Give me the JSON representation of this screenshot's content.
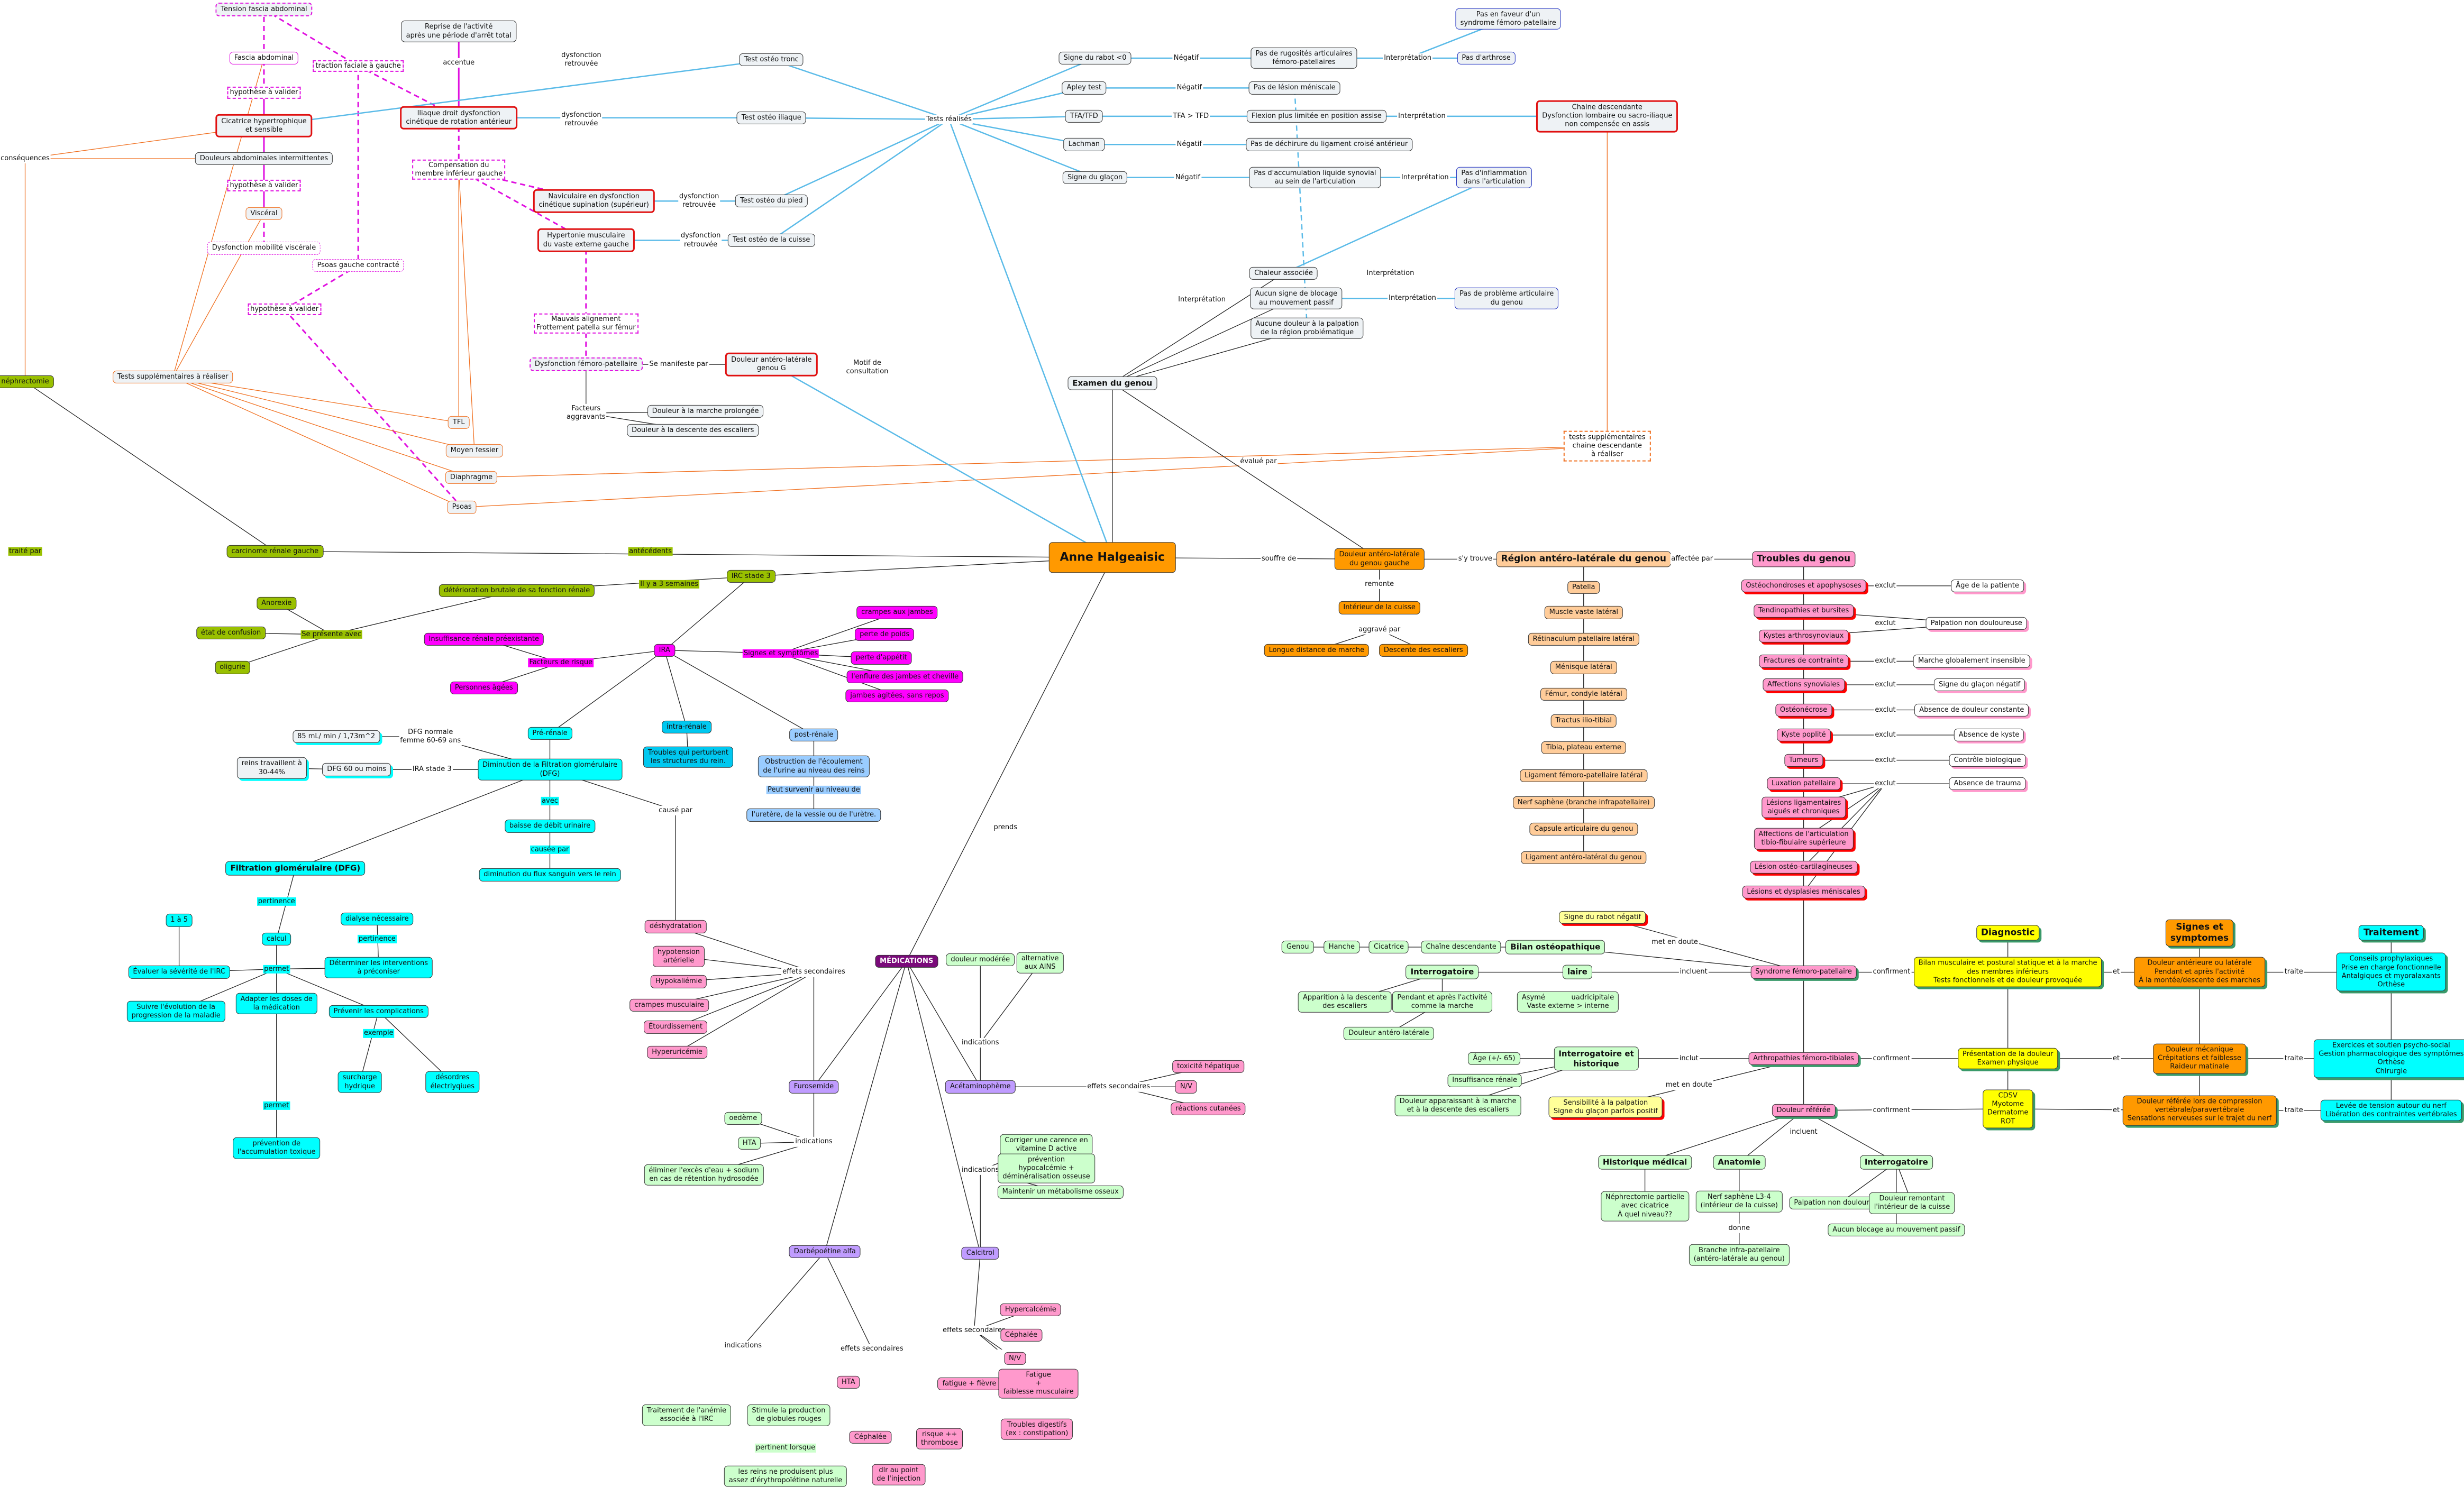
{
  "colors": {
    "blue_link": "#5bbbe8",
    "orange_link": "#f07020",
    "magenta_link": "#e010e0",
    "central": "#ff9900",
    "highlight_border": "#e01010"
  },
  "nodes": {
    "tension_fascia": "Tension fascia abdominal",
    "fascia": "Fascia abdominal",
    "hyp1": "hypothèse à valider",
    "cicatrice": "Cicatrice hypertrophique\net sensible",
    "douleurs_abdo": "Douleurs abdominales intermittentes",
    "hyp2": "hypothèse à valider",
    "visceral": "Viscéral",
    "dysf_visc": "Dysfonction mobilité viscérale",
    "traction": "traction faciale à gauche",
    "psoas_g": "Psoas gauche contracté",
    "hyp3": "hypothèse à valider",
    "consequences": "conséquences",
    "nephrectomie": "néphrectomie",
    "tests_supp": "Tests supplémentaires à réaliser",
    "tfl": "TFL",
    "moyen_fessier": "Moyen fessier",
    "diaphragme": "Diaphragme",
    "psoas": "Psoas",
    "reprise": "Reprise de l'activité\naprès une période d'arrêt total",
    "accentue": "accentue",
    "iliaque": "Iliaque droit dysfonction\ncinétique de rotation antérieur",
    "compensation": "Compensation du\nmembre inférieur gauche",
    "dr1": "dysfonction\nretrouvée",
    "dr2": "dysfonction\nretrouvée",
    "dr3": "dysfonction\nretrouvée",
    "dr4": "dysfonction\nretrouvée",
    "test_tronc": "Test ostéo tronc",
    "test_iliaque": "Test ostéo iliaque",
    "test_pied": "Test ostéo du pied",
    "test_cuisse": "Test ostéo de la cuisse",
    "tests_realises": "Tests réalisés",
    "naviculaire": "Naviculaire en dysfonction\ncinétique supination (supérieur)",
    "hypertonie": "Hypertonie musculaire\ndu vaste externe gauche",
    "mauvais": "Mauvais alignement\nFrottement patella sur fémur",
    "dysf_fp": "Dysfonction fémoro-patellaire",
    "se_manifeste": "Se manifeste par",
    "douleur_g": "Douleur antéro-latérale\ngenou G",
    "motif": "Motif de\nconsultation",
    "facteurs_aggr": "Facteurs\naggravants",
    "d_marche": "Douleur à la marche prolongée",
    "d_descente": "Douleur à la descente des escaliers",
    "signe_rabot": "Signe du rabot <0",
    "neg1": "Négatif",
    "rugosites": "Pas de rugosités articulaires\nfémoro-patellaires",
    "int1": "Interprétation",
    "pas_faveur": "Pas en faveur d'un\nsyndrome fémoro-patellaire",
    "pas_arthrose": "Pas d'arthrose",
    "apley": "Apley test",
    "neg2": "Négatif",
    "pas_lesion": "Pas de lésion méniscale",
    "tfa": "TFA/TFD",
    "tfa_gt": "TFA > TFD",
    "flexion": "Flexion plus limitée en position assise",
    "int2": "Interprétation",
    "chaine_desc": "Chaine descendante\nDysfonction lombaire ou sacro-iliaque\nnon compensée en assis",
    "lachman": "Lachman",
    "neg3": "Négatif",
    "pas_dechirure": "Pas de déchirure du ligament croisé antérieur",
    "glacon": "Signe du glaçon",
    "neg4": "Négatif",
    "accumulation": "Pas d'accumulation liquide synovial\nau sein de l'articulation",
    "int3": "Interprétation",
    "pas_inflammation": "Pas d'inflammation\ndans l'articulation",
    "int_dash": "Interprétation",
    "chaleur": "Chaleur associée",
    "int4": "Interprétation",
    "aucun_blocage": "Aucun signe de blocage\nau mouvement passif",
    "int5": "Interprétation",
    "pas_probleme": "Pas de problème articulaire\ndu genou",
    "aucune_douleur": "Aucune douleur à la palpation\nde la région problématique",
    "examen_genou": "Examen du genou",
    "tests_supp_chaine": "tests supplémentaires\nchaine descendante\nà réaliser",
    "evalue_par": "évalué par",
    "anne": "Anne Halgeaisic",
    "carcinome": "carcinome rénale gauche",
    "traite_par": "traité par",
    "antecedents": "antécédents",
    "irc": "IRC stade 3",
    "il_y_a": "Il y a 3 semaines",
    "deterioration": "détérioration brutale de sa fonction rénale",
    "anorexie": "Anorexie",
    "se_presente": "Se présente avec",
    "confusion": "état de confusion",
    "oligurie": "oligurie",
    "insuff_preex": "Insuffisance rénale préexistante",
    "facteurs_risque": "Facteurs de risque",
    "personnes_agees": "Personnes âgées",
    "ira": "IRA",
    "signes_sympt": "Signes et symptômes",
    "crampes": "crampes aux jambes",
    "perte_poids": "perte de poids",
    "perte_appetit": "perte d'appétit",
    "enflure": "l'enflure des jambes et cheville",
    "jambes_agitees": "jambes agitées, sans repos",
    "pre_renale": "Pré-rénale",
    "intra_renale": "intra-rénale",
    "post_renale": "post-rénale",
    "ml85": "85 mL/ min / 1,73m^2",
    "dfg_normale": "DFG normale\nfemme 60-69 ans",
    "dfg60": "DFG 60 ou moins",
    "ira3": "IRA stade 3",
    "reins_trav": "reins travaillent à\n30-44%",
    "dim_dfg": "Diminution de la Filtration glomérulaire\n(DFG)",
    "troubles_struct": "Troubles qui perturbent\nles structures du rein.",
    "obstruction": "Obstruction de l'écoulement\nde l'urine au niveau des reins",
    "peut_survenir": "Peut survenir au niveau de",
    "uretere": "l'uretère, de la vessie ou de l'urètre.",
    "cause_par": "causé par",
    "avec": "avec",
    "baisse_debit": "baisse de débit urinaire",
    "causee_par": "causée par",
    "dim_flux": "diminution du flux sanguin vers le rein",
    "filtration": "Filtration glomérulaire (DFG)",
    "pertinence1": "pertinence",
    "calcul": "calcul",
    "un_a_cinq": "1 à 5",
    "evaluer": "Évaluer la sévérité de l'IRC",
    "permet1": "permet",
    "dialyse": "dialyse nécessaire",
    "pertinence2": "pertinence",
    "determiner": "Déterminer les interventions\nà préconiser",
    "suivre": "Suivre l'évolution de la\nprogression de la maladie",
    "adapter": "Adapter les doses de\nla médication",
    "prevenir": "Prévenir les complications",
    "exemple": "exemple",
    "surcharge": "surcharge\nhydrique",
    "desordres": "désordres\nélectrlyqiues",
    "permet2": "permet",
    "prevention": "prévention de\nl'accumulation toxique",
    "douleur_gg": "Douleur antéro-latérale\ndu genou gauche",
    "souffre_de": "souffre de",
    "sy_trouve": "s'y trouve",
    "region": "Région antéro-latérale du genou",
    "affectee_par": "affectée par",
    "troubles_genou": "Troubles du genou",
    "remonte": "remonte",
    "interieur_cuisse": "Intérieur de la cuisse",
    "aggrave_par": "aggravé par",
    "longue_distance": "Longue distance de marche",
    "descente": "Descente des escaliers",
    "patella": "Patella",
    "vaste": "Muscle vaste latéral",
    "retinaculum": "Rétinaculum patellaire latéral",
    "menisque": "Ménisque latéral",
    "femur": "Fémur, condyle latéral",
    "tractus": "Tractus ilio-tibial",
    "tibia": "Tibia, plateau externe",
    "lig_fp": "Ligament fémoro-patellaire latéral",
    "nerf_saphene": "Nerf saphène (branche infrapatellaire)",
    "capsule": "Capsule articulaire du genou",
    "lig_al": "Ligament antéro-latéral du genou",
    "t1": "Ostéochondroses et apophysoses",
    "t2": "Tendinopathies et bursites",
    "t3": "Kystes arthrosynoviaux",
    "t4": "Fractures de contrainte",
    "t5": "Affections synoviales",
    "t6": "Ostéonécrose",
    "t7": "Kyste poplité",
    "t8": "Tumeurs",
    "t9": "Luxation patellaire",
    "t10": "Lésions ligamentaires\naiguës et chroniques",
    "t11": "Affections de l'articulation\ntibio-fibulaire supérieure",
    "t12": "Lésion ostéo-cartilagineuses",
    "t13": "Lésions et dysplasies méniscales",
    "ex1": "exclut",
    "ex2": "exclut",
    "ex3": "exclut",
    "ex4": "exclut",
    "ex5": "exclut",
    "ex6": "exclut",
    "ex7": "exclut",
    "ex8": "exclut",
    "r1": "Âge de la patiente",
    "r2": "Palpation non douloureuse",
    "r3": "Marche globalement insensible",
    "r4": "Signe du glaçon négatif",
    "r5": "Absence de douleur constante",
    "r6": "Absence de kyste",
    "r7": "Contrôle biologique",
    "r8": "Absence de trauma",
    "rabot_neg": "Signe du rabot négatif",
    "met_doute1": "met en doute",
    "bilan_osteo": "Bilan ostéopathique",
    "chaine_d2": "Chaîne descendante",
    "cicatrice2": "Cicatrice",
    "hanche": "Hanche",
    "genou": "Genou",
    "interrog1": "Interrogatoire",
    "laire": "laire",
    "incluent1": "incluent",
    "sfp": "Syndrome fémoro-patellaire",
    "apparition": "Apparition à la descente\ndes escaliers",
    "pendant": "Pendant et après l'activité\ncomme la marche",
    "asym": "Asymé            uadricipitale\nVaste externe > interne",
    "d_antlat": "Douleur antéro-latérale",
    "age65": "Âge (+/- 65)",
    "interrog_hist": "Interrogatoire et\nhistorique",
    "inclut": "inclut",
    "arthropathies": "Arthropathies fémoro-tibiales",
    "insuff_renale": "Insuffisance rénale",
    "d_apparaissant": "Douleur apparaissant à la marche\net à la descente des escaliers",
    "sensibilite": "Sensibilité à la palpation\nSigne du glaçon parfois positif",
    "met_doute2": "met en doute",
    "douleur_ref": "Douleur référée",
    "incluent2": "incluent",
    "hist_med": "Historique médical",
    "anatomie": "Anatomie",
    "interrog2": "Interrogatoire",
    "nephr_part": "Néphrectomie partielle\navec cicatrice\nÀ quel niveau??",
    "nerf_l34": "Nerf saphène L3-4\n(intérieur de la cuisse)",
    "donne": "donne",
    "branche": "Branche infra-patellaire\n(antéro-latérale au genou)",
    "palp_nd": "Palpation non douloureuse",
    "d_remontant": "Douleur remontant\nl'intérieur de la cuisse",
    "aucun_bloc2": "Aucun blocage au mouvement passif",
    "diagnostic": "Diagnostic",
    "signes_s": "Signes et\nsymptomes",
    "traitement": "Traitement",
    "conf1": "confirment",
    "conf2": "confirment",
    "conf3": "confirment",
    "et1": "et",
    "et2": "et",
    "et3": "et",
    "tr1": "traite",
    "tr2": "traite",
    "tr3": "traite",
    "bilan_musc": "Bilan musculaire et postural statique et à la marche\ndes membres inférieurs\nTests fonctionnels et de douleur provoquée",
    "d_anterieure": "Douleur antérieure ou latérale\nPendant et après l'activité\nÀ la montée/descente des marches",
    "conseils": "Conseils prophylaxiques\nPrise en charge fonctionnelle\nAntalgiques et myoralaxants\nOrthèse",
    "presentation": "Présentation de la douleur\nExamen physique",
    "d_mecanique": "Douleur mécanique\nCrépitations et faiblesse\nRaideur matinale",
    "exercices": "Exercices et soutien psycho-social\nGestion pharmacologique des symptômes\nOrthèse\nChirurgie",
    "cdsv": "CDSV\nMyotome\nDermatome\nROT",
    "d_ref_comp": "Douleur référée lors de compression\nvertébrale/paravertébrale\nSensations nerveuses sur le trajet du nerf",
    "levee": "Levée de tension autour du nerf\nLibération des contraintes vertébrales",
    "medications": "MÉDICATIONS",
    "prends": "prends",
    "es1": "effets secondaires",
    "deshydratation": "déshydratation",
    "hypotension": "hypotension\nartérielle",
    "hypokaliemie": "Hypokaliémie",
    "crampes_musc": "crampes musculaire",
    "etourdissement": "Étourdissement",
    "hyperuricemie": "Hyperuricémie",
    "furosemide": "Furosemide",
    "ind1": "indications",
    "oedeme": "oedème",
    "hta1": "HTA",
    "eliminer": "éliminer l'excès d'eau + sodium\nen cas de rétention hydrosodée",
    "douleur_mod": "douleur modérée",
    "alt_ains": "alternative\naux AINS",
    "ind2": "indications",
    "acetaminophene": "Acétaminophème",
    "es2": "effets secondaires",
    "tox_hep": "toxicité hépatique",
    "nv1": "N/V",
    "reactions": "réactions cutanées",
    "darbe": "Darbépoétine alfa",
    "ind3": "indications",
    "es3": "effets secondaires",
    "trait_anemie": "Traitement de l'anémie\nassociée à l'IRC",
    "stimule": "Stimule la production\nde globules rouges",
    "pertinent_lorsque": "pertinent lorsque",
    "reins_epo": "les reins ne produisent plus\nassez d'érythropoïétine naturelle",
    "hta2": "HTA",
    "cephalee1": "Céphalée",
    "dlr_injection": "dlr au point\nde l'injection",
    "thrombose": "risque ++\nthrombose",
    "fatigue_fievre": "fatigue + fièvre",
    "calcitrol": "Calcitrol",
    "ind4": "indications",
    "corriger": "Corriger une carence en\nvitamine D active",
    "prev_hypo": "prévention\nhypocalcémie +\ndéminéralisation osseuse",
    "maintenir": "Maintenir un métabolisme osseux",
    "es4": "effets secondaires",
    "hypercalcemie": "Hypercalcémie",
    "cephalee2": "Céphalée",
    "nv2": "N/V",
    "fatigue": "Fatigue\n+\nfaiblesse musculaire",
    "troubles_dig": "Troubles digestifs\n(ex : constipation)"
  }
}
